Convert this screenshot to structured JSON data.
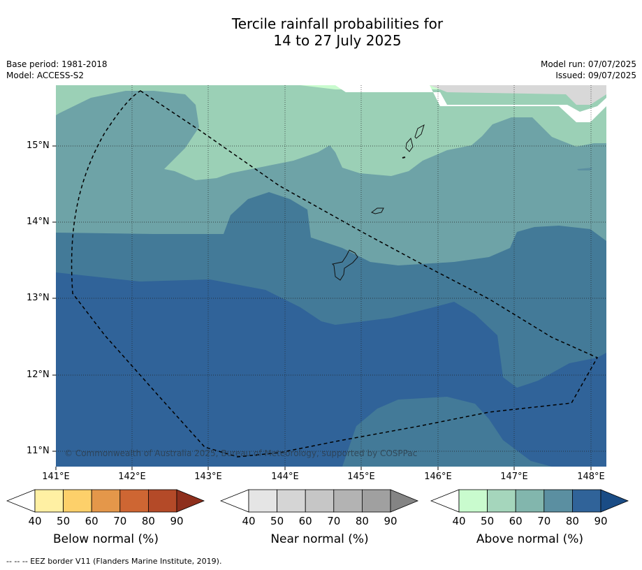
{
  "title": {
    "line1": "Tercile rainfall probabilities for",
    "line2": "14 to 27 July 2025"
  },
  "meta_left": {
    "base_period": "Base period: 1981-2018",
    "model": "Model: ACCESS-S2"
  },
  "meta_right": {
    "model_run": "Model run: 07/07/2025",
    "issued": "Issued: 09/07/2025"
  },
  "map": {
    "lat_labels": [
      "15°N",
      "14°N",
      "13°N",
      "12°N",
      "11°N"
    ],
    "lon_labels": [
      "141°E",
      "142°E",
      "143°E",
      "144°E",
      "145°E",
      "146°E",
      "147°E",
      "148°E"
    ],
    "credit": "© Commonwealth of Australia 2025, Bureau of Meteorology, supported by COSPPac",
    "eez_border_style": "dashed",
    "dominant_category": "Above normal"
  },
  "colorbars": [
    {
      "label": "Below normal (%)",
      "ticks": [
        "40",
        "50",
        "60",
        "70",
        "80",
        "90"
      ],
      "colors": [
        "#ffffff",
        "#fff0a3",
        "#fdd06a",
        "#e4974a",
        "#ce6633",
        "#b44a28",
        "#8e2f1c"
      ]
    },
    {
      "label": "Near normal (%)",
      "ticks": [
        "40",
        "50",
        "60",
        "70",
        "80",
        "90"
      ],
      "colors": [
        "#ffffff",
        "#e5e5e5",
        "#d5d5d5",
        "#c6c6c6",
        "#b3b3b3",
        "#a0a0a0",
        "#848484"
      ]
    },
    {
      "label": "Above normal (%)",
      "ticks": [
        "40",
        "50",
        "60",
        "70",
        "80",
        "90"
      ],
      "colors": [
        "#ffffff",
        "#c9fbce",
        "#a5d6bc",
        "#82b6ad",
        "#5b8fa1",
        "#306399",
        "#1a4c85"
      ]
    }
  ],
  "footnote": "--  --  -- EEZ border V11 (Flanders Marine Institute, 2019)."
}
